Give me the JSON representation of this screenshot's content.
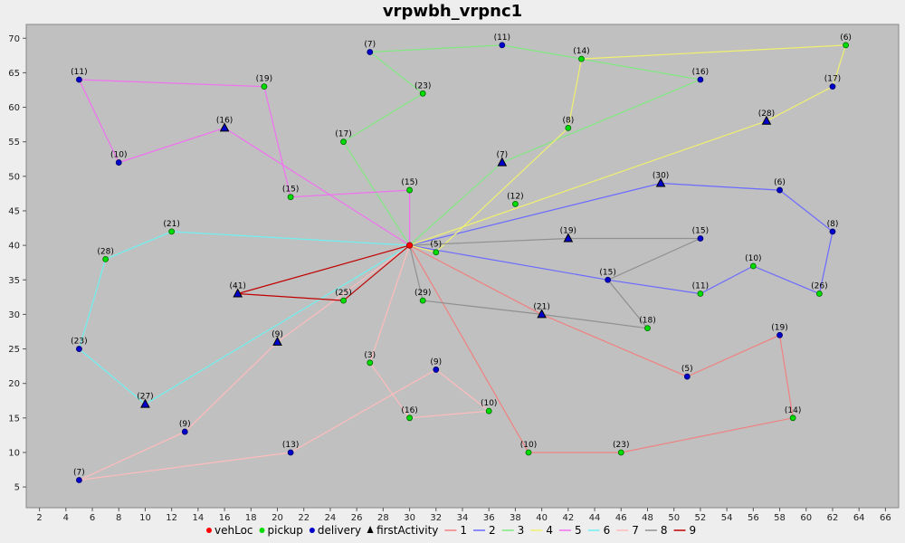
{
  "chart_data": {
    "type": "scatter",
    "title": "vrpwbh_vrpnc1",
    "xlabel": "",
    "ylabel": "",
    "xlim": [
      1,
      67
    ],
    "ylim": [
      2,
      72
    ],
    "x_ticks": [
      2,
      4,
      6,
      8,
      10,
      12,
      14,
      16,
      18,
      20,
      22,
      24,
      26,
      28,
      30,
      32,
      34,
      36,
      38,
      40,
      42,
      44,
      46,
      48,
      50,
      52,
      54,
      56,
      58,
      60,
      62,
      64,
      66
    ],
    "y_ticks": [
      5,
      10,
      15,
      20,
      25,
      30,
      35,
      40,
      45,
      50,
      55,
      60,
      65,
      70
    ],
    "grid": false,
    "background": "#c0c0c0",
    "depot": {
      "x": 30,
      "y": 40
    },
    "legend": [
      {
        "label": "vehLoc",
        "kind": "circle",
        "color": "#ff0000"
      },
      {
        "label": "pickup",
        "kind": "circle",
        "color": "#00dd00"
      },
      {
        "label": "delivery",
        "kind": "circle",
        "color": "#0000cc"
      },
      {
        "label": "firstActivity",
        "kind": "triangle",
        "color": "#000000"
      },
      {
        "label": "1",
        "kind": "line",
        "color": "#f08080"
      },
      {
        "label": "2",
        "kind": "line",
        "color": "#6a6aff"
      },
      {
        "label": "3",
        "kind": "line",
        "color": "#80e880"
      },
      {
        "label": "4",
        "kind": "line",
        "color": "#f0f070"
      },
      {
        "label": "5",
        "kind": "line",
        "color": "#f070f0"
      },
      {
        "label": "6",
        "kind": "line",
        "color": "#70f0f0"
      },
      {
        "label": "7",
        "kind": "line",
        "color": "#ffbcbc"
      },
      {
        "label": "8",
        "kind": "line",
        "color": "#909090"
      },
      {
        "label": "9",
        "kind": "line",
        "color": "#c00000"
      }
    ],
    "series": [
      {
        "name": "1",
        "color": "#f08080",
        "points": [
          [
            30,
            40
          ],
          [
            40,
            30
          ],
          [
            51,
            21
          ],
          [
            58,
            27
          ],
          [
            59,
            15
          ],
          [
            46,
            10
          ],
          [
            39,
            10
          ],
          [
            30,
            40
          ]
        ]
      },
      {
        "name": "2",
        "color": "#6a6aff",
        "points": [
          [
            30,
            40
          ],
          [
            49,
            49
          ],
          [
            58,
            48
          ],
          [
            62,
            42
          ],
          [
            61,
            33
          ],
          [
            56,
            37
          ],
          [
            52,
            33
          ],
          [
            45,
            35
          ],
          [
            30,
            40
          ]
        ]
      },
      {
        "name": "3",
        "color": "#80e880",
        "points": [
          [
            30,
            40
          ],
          [
            37,
            52
          ],
          [
            52,
            64
          ],
          [
            37,
            69
          ],
          [
            27,
            68
          ],
          [
            31,
            62
          ],
          [
            25,
            55
          ],
          [
            30,
            40
          ]
        ]
      },
      {
        "name": "4",
        "color": "#f0f070",
        "points": [
          [
            30,
            40
          ],
          [
            57,
            58
          ],
          [
            62,
            63
          ],
          [
            63,
            69
          ],
          [
            43,
            67
          ],
          [
            42,
            57
          ],
          [
            32,
            39
          ],
          [
            30,
            40
          ]
        ]
      },
      {
        "name": "5",
        "color": "#f070f0",
        "points": [
          [
            30,
            40
          ],
          [
            16,
            57
          ],
          [
            8,
            52
          ],
          [
            5,
            64
          ],
          [
            19,
            63
          ],
          [
            21,
            47
          ],
          [
            30,
            48
          ],
          [
            30,
            40
          ]
        ]
      },
      {
        "name": "6",
        "color": "#70f0f0",
        "points": [
          [
            30,
            40
          ],
          [
            10,
            17
          ],
          [
            5,
            25
          ],
          [
            7,
            38
          ],
          [
            12,
            42
          ],
          [
            30,
            40
          ]
        ]
      },
      {
        "name": "7",
        "color": "#ffbcbc",
        "points": [
          [
            30,
            40
          ],
          [
            20,
            26
          ],
          [
            13,
            13
          ],
          [
            5,
            6
          ],
          [
            21,
            10
          ],
          [
            32,
            22
          ],
          [
            36,
            16
          ],
          [
            30,
            15
          ],
          [
            27,
            23
          ],
          [
            30,
            40
          ]
        ]
      },
      {
        "name": "8",
        "color": "#909090",
        "points": [
          [
            30,
            40
          ],
          [
            42,
            41
          ],
          [
            52,
            41
          ],
          [
            45,
            35
          ],
          [
            48,
            28
          ],
          [
            40,
            30
          ],
          [
            31,
            32
          ],
          [
            30,
            40
          ]
        ]
      },
      {
        "name": "9",
        "color": "#c00000",
        "points": [
          [
            30,
            40
          ],
          [
            17,
            33
          ],
          [
            25,
            32
          ],
          [
            30,
            40
          ]
        ]
      }
    ],
    "points": [
      {
        "x": 40,
        "y": 30,
        "label": "(21)",
        "type": "first"
      },
      {
        "x": 51,
        "y": 21,
        "label": "(5)",
        "type": "delivery"
      },
      {
        "x": 58,
        "y": 27,
        "label": "(19)",
        "type": "delivery"
      },
      {
        "x": 59,
        "y": 15,
        "label": "(14)",
        "type": "pickup"
      },
      {
        "x": 46,
        "y": 10,
        "label": "(23)",
        "type": "pickup"
      },
      {
        "x": 39,
        "y": 10,
        "label": "(10)",
        "type": "pickup"
      },
      {
        "x": 49,
        "y": 49,
        "label": "(30)",
        "type": "first"
      },
      {
        "x": 58,
        "y": 48,
        "label": "(6)",
        "type": "delivery"
      },
      {
        "x": 62,
        "y": 42,
        "label": "(8)",
        "type": "delivery"
      },
      {
        "x": 61,
        "y": 33,
        "label": "(26)",
        "type": "pickup"
      },
      {
        "x": 56,
        "y": 37,
        "label": "(10)",
        "type": "pickup"
      },
      {
        "x": 52,
        "y": 33,
        "label": "(11)",
        "type": "pickup"
      },
      {
        "x": 45,
        "y": 35,
        "label": "(15)",
        "type": "delivery"
      },
      {
        "x": 32,
        "y": 39,
        "label": "(5)",
        "type": "pickup"
      },
      {
        "x": 37,
        "y": 52,
        "label": "(7)",
        "type": "first"
      },
      {
        "x": 52,
        "y": 64,
        "label": "(16)",
        "type": "delivery"
      },
      {
        "x": 37,
        "y": 69,
        "label": "(11)",
        "type": "delivery"
      },
      {
        "x": 27,
        "y": 68,
        "label": "(7)",
        "type": "delivery"
      },
      {
        "x": 31,
        "y": 62,
        "label": "(23)",
        "type": "pickup"
      },
      {
        "x": 25,
        "y": 55,
        "label": "(17)",
        "type": "pickup"
      },
      {
        "x": 57,
        "y": 58,
        "label": "(28)",
        "type": "first"
      },
      {
        "x": 62,
        "y": 63,
        "label": "(17)",
        "type": "delivery"
      },
      {
        "x": 63,
        "y": 69,
        "label": "(6)",
        "type": "pickup"
      },
      {
        "x": 43,
        "y": 67,
        "label": "(14)",
        "type": "pickup"
      },
      {
        "x": 42,
        "y": 57,
        "label": "(8)",
        "type": "pickup"
      },
      {
        "x": 38,
        "y": 46,
        "label": "(12)",
        "type": "pickup"
      },
      {
        "x": 16,
        "y": 57,
        "label": "(16)",
        "type": "first"
      },
      {
        "x": 8,
        "y": 52,
        "label": "(10)",
        "type": "delivery"
      },
      {
        "x": 5,
        "y": 64,
        "label": "(11)",
        "type": "delivery"
      },
      {
        "x": 19,
        "y": 63,
        "label": "(19)",
        "type": "pickup"
      },
      {
        "x": 21,
        "y": 47,
        "label": "(15)",
        "type": "pickup"
      },
      {
        "x": 30,
        "y": 48,
        "label": "(15)",
        "type": "pickup"
      },
      {
        "x": 10,
        "y": 17,
        "label": "(27)",
        "type": "first"
      },
      {
        "x": 5,
        "y": 25,
        "label": "(23)",
        "type": "delivery"
      },
      {
        "x": 7,
        "y": 38,
        "label": "(28)",
        "type": "pickup"
      },
      {
        "x": 12,
        "y": 42,
        "label": "(21)",
        "type": "pickup"
      },
      {
        "x": 20,
        "y": 26,
        "label": "(9)",
        "type": "first"
      },
      {
        "x": 13,
        "y": 13,
        "label": "(9)",
        "type": "delivery"
      },
      {
        "x": 5,
        "y": 6,
        "label": "(7)",
        "type": "delivery"
      },
      {
        "x": 21,
        "y": 10,
        "label": "(13)",
        "type": "delivery"
      },
      {
        "x": 32,
        "y": 22,
        "label": "(9)",
        "type": "delivery"
      },
      {
        "x": 36,
        "y": 16,
        "label": "(10)",
        "type": "pickup"
      },
      {
        "x": 30,
        "y": 15,
        "label": "(16)",
        "type": "pickup"
      },
      {
        "x": 27,
        "y": 23,
        "label": "(3)",
        "type": "pickup"
      },
      {
        "x": 42,
        "y": 41,
        "label": "(19)",
        "type": "first"
      },
      {
        "x": 52,
        "y": 41,
        "label": "(15)",
        "type": "delivery"
      },
      {
        "x": 48,
        "y": 28,
        "label": "(18)",
        "type": "pickup"
      },
      {
        "x": 31,
        "y": 32,
        "label": "(29)",
        "type": "pickup"
      },
      {
        "x": 17,
        "y": 33,
        "label": "(41)",
        "type": "first"
      },
      {
        "x": 25,
        "y": 32,
        "label": "(25)",
        "type": "pickup"
      }
    ]
  }
}
